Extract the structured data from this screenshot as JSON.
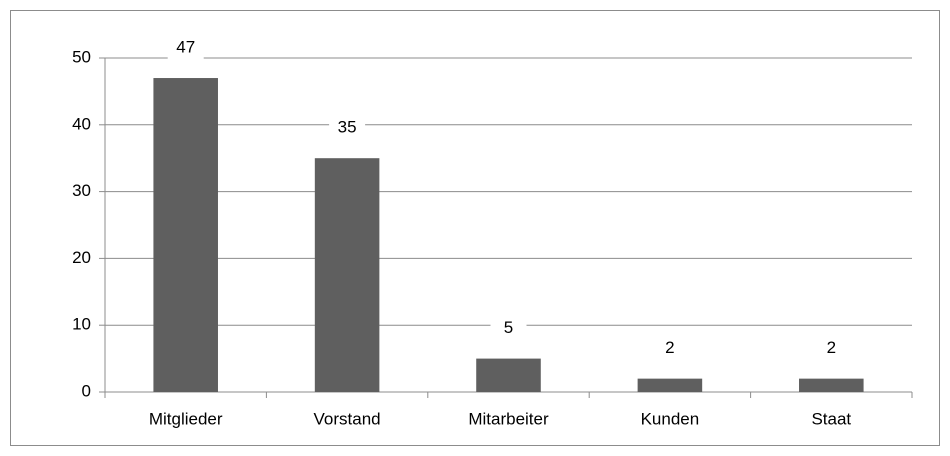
{
  "chart_data": {
    "type": "bar",
    "categories": [
      "Mitglieder",
      "Vorstand",
      "Mitarbeiter",
      "Kunden",
      "Staat"
    ],
    "values": [
      47,
      35,
      5,
      2,
      2
    ],
    "color": "#5f5f5f",
    "ylim": [
      0,
      50
    ],
    "yticks": [
      0,
      10,
      20,
      30,
      40,
      50
    ],
    "grid": true
  }
}
